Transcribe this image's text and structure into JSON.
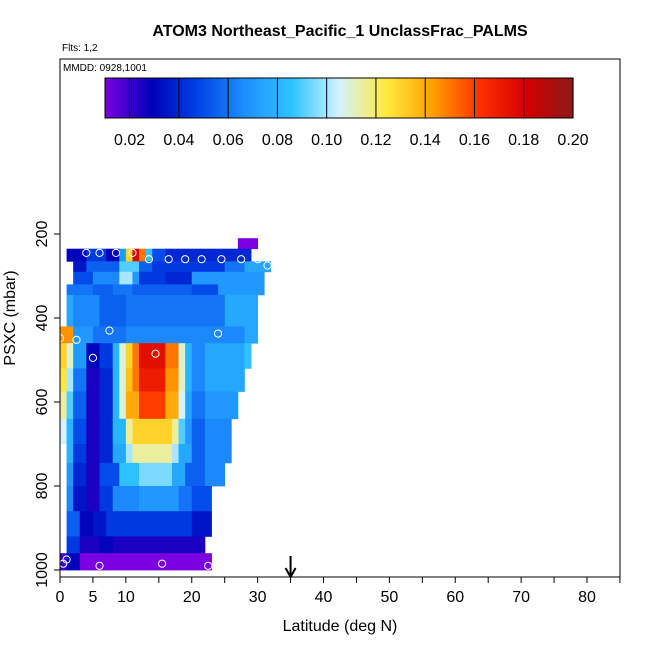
{
  "chart_data": {
    "type": "heatmap",
    "title": "ATOM3 Northeast_Pacific_1 UnclassFrac_PALMS",
    "flights_label": "Flts: 1,2",
    "dates_label": "MMDD: 0928,1001",
    "xlabel": "Latitude (deg N)",
    "ylabel": "PSXC (mbar)",
    "xlim": [
      0,
      85
    ],
    "ylim": [
      1000,
      110
    ],
    "x_ticks": [
      0,
      5,
      10,
      20,
      30,
      40,
      50,
      60,
      70,
      80
    ],
    "x_minor_ticks": [
      0,
      5,
      10,
      15,
      20,
      25,
      30,
      35,
      40,
      45,
      50,
      55,
      60,
      65,
      70,
      75,
      80,
      85
    ],
    "y_ticks": [
      200,
      400,
      600,
      800,
      1000
    ],
    "colorbar": {
      "min": 0.01,
      "max": 0.2,
      "ticks": [
        0.02,
        0.04,
        0.06,
        0.08,
        0.1,
        0.12,
        0.14,
        0.16,
        0.18,
        0.2
      ],
      "tick_labels": [
        "0.02",
        "0.04",
        "0.06",
        "0.08",
        "0.10",
        "0.12",
        "0.14",
        "0.16",
        "0.18",
        "0.20"
      ],
      "palette": [
        "#7a00e0",
        "#0000b8",
        "#0044e6",
        "#1e90ff",
        "#2ec4ff",
        "#d4f2ff",
        "#ffea40",
        "#ffa000",
        "#ff3000",
        "#d40000",
        "#8b1a1a"
      ]
    },
    "rows": [
      {
        "p0": 210,
        "p1": 235,
        "cells": [
          [
            27,
            30,
            0.005
          ]
        ]
      },
      {
        "p0": 235,
        "p1": 265,
        "cells": [
          [
            1,
            4,
            0.03
          ],
          [
            4,
            7,
            0.045
          ],
          [
            7,
            9,
            0.03
          ],
          [
            9,
            10,
            0.07
          ],
          [
            10,
            11,
            0.13
          ],
          [
            11,
            12,
            0.18
          ],
          [
            12,
            13,
            0.15
          ],
          [
            13,
            14,
            0.085
          ],
          [
            14,
            16,
            0.05
          ],
          [
            16,
            23,
            0.04
          ],
          [
            23,
            29,
            0.04
          ]
        ]
      },
      {
        "p0": 265,
        "p1": 290,
        "cells": [
          [
            2,
            4,
            0.035
          ],
          [
            4,
            9,
            0.055
          ],
          [
            9,
            12,
            0.09
          ],
          [
            12,
            14,
            0.055
          ],
          [
            14,
            25,
            0.045
          ],
          [
            25,
            28,
            0.06
          ],
          [
            28,
            32,
            0.075
          ]
        ]
      },
      {
        "p0": 290,
        "p1": 320,
        "cells": [
          [
            2,
            5,
            0.05
          ],
          [
            5,
            9,
            0.065
          ],
          [
            9,
            11,
            0.1
          ],
          [
            11,
            12,
            0.07
          ],
          [
            12,
            16,
            0.045
          ],
          [
            16,
            20,
            0.04
          ],
          [
            20,
            31,
            0.07
          ]
        ]
      },
      {
        "p0": 320,
        "p1": 345,
        "cells": [
          [
            1,
            5,
            0.06
          ],
          [
            5,
            8,
            0.055
          ],
          [
            8,
            11,
            0.06
          ],
          [
            11,
            20,
            0.055
          ],
          [
            20,
            24,
            0.05
          ],
          [
            24,
            31,
            0.07
          ]
        ]
      },
      {
        "p0": 345,
        "p1": 420,
        "cells": [
          [
            1,
            2,
            0.075
          ],
          [
            2,
            6,
            0.065
          ],
          [
            6,
            10,
            0.055
          ],
          [
            10,
            25,
            0.06
          ],
          [
            25,
            30,
            0.075
          ]
        ]
      },
      {
        "p0": 420,
        "p1": 460,
        "cells": [
          [
            0,
            2,
            0.145
          ],
          [
            2,
            5,
            0.07
          ],
          [
            5,
            10,
            0.06
          ],
          [
            10,
            28,
            0.065
          ],
          [
            28,
            30,
            0.075
          ]
        ]
      },
      {
        "p0": 460,
        "p1": 520,
        "cells": [
          [
            0,
            1,
            0.13
          ],
          [
            1,
            2,
            0.11
          ],
          [
            2,
            4,
            0.07
          ],
          [
            4,
            6,
            0.03
          ],
          [
            6,
            8,
            0.045
          ],
          [
            8,
            9,
            0.08
          ],
          [
            9,
            10,
            0.11
          ],
          [
            10,
            11,
            0.13
          ],
          [
            11,
            12,
            0.15
          ],
          [
            12,
            16,
            0.175
          ],
          [
            16,
            18,
            0.15
          ],
          [
            18,
            19,
            0.11
          ],
          [
            19,
            20,
            0.08
          ],
          [
            20,
            22,
            0.065
          ],
          [
            22,
            28,
            0.075
          ],
          [
            28,
            29,
            0.085
          ]
        ]
      },
      {
        "p0": 520,
        "p1": 575,
        "cells": [
          [
            0,
            1,
            0.125
          ],
          [
            1,
            2,
            0.1
          ],
          [
            2,
            4,
            0.06
          ],
          [
            4,
            6,
            0.025
          ],
          [
            6,
            8,
            0.04
          ],
          [
            8,
            9,
            0.08
          ],
          [
            9,
            10,
            0.11
          ],
          [
            10,
            11,
            0.135
          ],
          [
            11,
            12,
            0.15
          ],
          [
            12,
            16,
            0.17
          ],
          [
            16,
            18,
            0.145
          ],
          [
            18,
            19,
            0.11
          ],
          [
            19,
            20,
            0.08
          ],
          [
            20,
            22,
            0.065
          ],
          [
            22,
            28,
            0.075
          ]
        ]
      },
      {
        "p0": 575,
        "p1": 640,
        "cells": [
          [
            0,
            1,
            0.115
          ],
          [
            1,
            2,
            0.09
          ],
          [
            2,
            4,
            0.055
          ],
          [
            4,
            6,
            0.025
          ],
          [
            6,
            8,
            0.04
          ],
          [
            8,
            9,
            0.08
          ],
          [
            9,
            10,
            0.11
          ],
          [
            10,
            12,
            0.14
          ],
          [
            12,
            16,
            0.16
          ],
          [
            16,
            18,
            0.14
          ],
          [
            18,
            19,
            0.105
          ],
          [
            19,
            20,
            0.075
          ],
          [
            20,
            22,
            0.06
          ],
          [
            22,
            27,
            0.07
          ]
        ]
      },
      {
        "p0": 640,
        "p1": 700,
        "cells": [
          [
            0,
            1,
            0.105
          ],
          [
            1,
            2,
            0.08
          ],
          [
            2,
            4,
            0.05
          ],
          [
            4,
            6,
            0.025
          ],
          [
            6,
            8,
            0.04
          ],
          [
            8,
            10,
            0.08
          ],
          [
            10,
            11,
            0.115
          ],
          [
            11,
            17,
            0.13
          ],
          [
            17,
            18,
            0.115
          ],
          [
            18,
            19,
            0.09
          ],
          [
            19,
            20,
            0.07
          ],
          [
            20,
            22,
            0.055
          ],
          [
            22,
            26,
            0.065
          ]
        ]
      },
      {
        "p0": 700,
        "p1": 745,
        "cells": [
          [
            1,
            2,
            0.08
          ],
          [
            2,
            4,
            0.045
          ],
          [
            4,
            6,
            0.025
          ],
          [
            6,
            8,
            0.04
          ],
          [
            8,
            10,
            0.075
          ],
          [
            10,
            11,
            0.1
          ],
          [
            11,
            17,
            0.115
          ],
          [
            17,
            18,
            0.1
          ],
          [
            18,
            20,
            0.075
          ],
          [
            20,
            22,
            0.055
          ],
          [
            22,
            26,
            0.065
          ]
        ]
      },
      {
        "p0": 745,
        "p1": 800,
        "cells": [
          [
            1,
            2,
            0.07
          ],
          [
            2,
            4,
            0.04
          ],
          [
            4,
            6,
            0.025
          ],
          [
            6,
            9,
            0.05
          ],
          [
            9,
            12,
            0.085
          ],
          [
            12,
            17,
            0.095
          ],
          [
            17,
            19,
            0.075
          ],
          [
            19,
            22,
            0.055
          ],
          [
            22,
            25,
            0.065
          ]
        ]
      },
      {
        "p0": 800,
        "p1": 860,
        "cells": [
          [
            1,
            2,
            0.065
          ],
          [
            2,
            4,
            0.035
          ],
          [
            4,
            6,
            0.025
          ],
          [
            6,
            8,
            0.045
          ],
          [
            8,
            12,
            0.065
          ],
          [
            12,
            18,
            0.07
          ],
          [
            18,
            20,
            0.06
          ],
          [
            20,
            23,
            0.05
          ]
        ]
      },
      {
        "p0": 860,
        "p1": 920,
        "cells": [
          [
            1,
            3,
            0.055
          ],
          [
            3,
            5,
            0.03
          ],
          [
            5,
            7,
            0.035
          ],
          [
            7,
            20,
            0.045
          ],
          [
            20,
            23,
            0.035
          ]
        ]
      },
      {
        "p0": 920,
        "p1": 960,
        "cells": [
          [
            1,
            3,
            0.045
          ],
          [
            3,
            6,
            0.025
          ],
          [
            6,
            8,
            0.03
          ],
          [
            8,
            22,
            0.025
          ]
        ]
      },
      {
        "p0": 960,
        "p1": 1000,
        "cells": [
          [
            0,
            1,
            0.02
          ],
          [
            1,
            3,
            0.03
          ],
          [
            3,
            6,
            0.01
          ],
          [
            6,
            23,
            0.01
          ]
        ]
      }
    ],
    "points": [
      [
        27,
        190
      ],
      [
        29.5,
        200
      ],
      [
        3,
        220
      ],
      [
        4,
        245
      ],
      [
        6,
        245
      ],
      [
        8.5,
        245
      ],
      [
        11,
        245
      ],
      [
        13.5,
        260
      ],
      [
        16.5,
        260
      ],
      [
        19,
        260
      ],
      [
        21.5,
        260
      ],
      [
        24.5,
        260
      ],
      [
        27.5,
        260
      ],
      [
        30,
        260
      ],
      [
        31.5,
        275
      ],
      [
        7.5,
        430
      ],
      [
        0,
        448
      ],
      [
        2.5,
        452
      ],
      [
        24,
        437
      ],
      [
        14.5,
        485
      ],
      [
        5,
        495
      ],
      [
        1,
        975
      ],
      [
        0.5,
        985
      ],
      [
        6,
        990
      ],
      [
        15.5,
        985
      ],
      [
        22.5,
        990
      ]
    ],
    "marker": {
      "x": 35,
      "symbol": "down-arrow"
    }
  }
}
